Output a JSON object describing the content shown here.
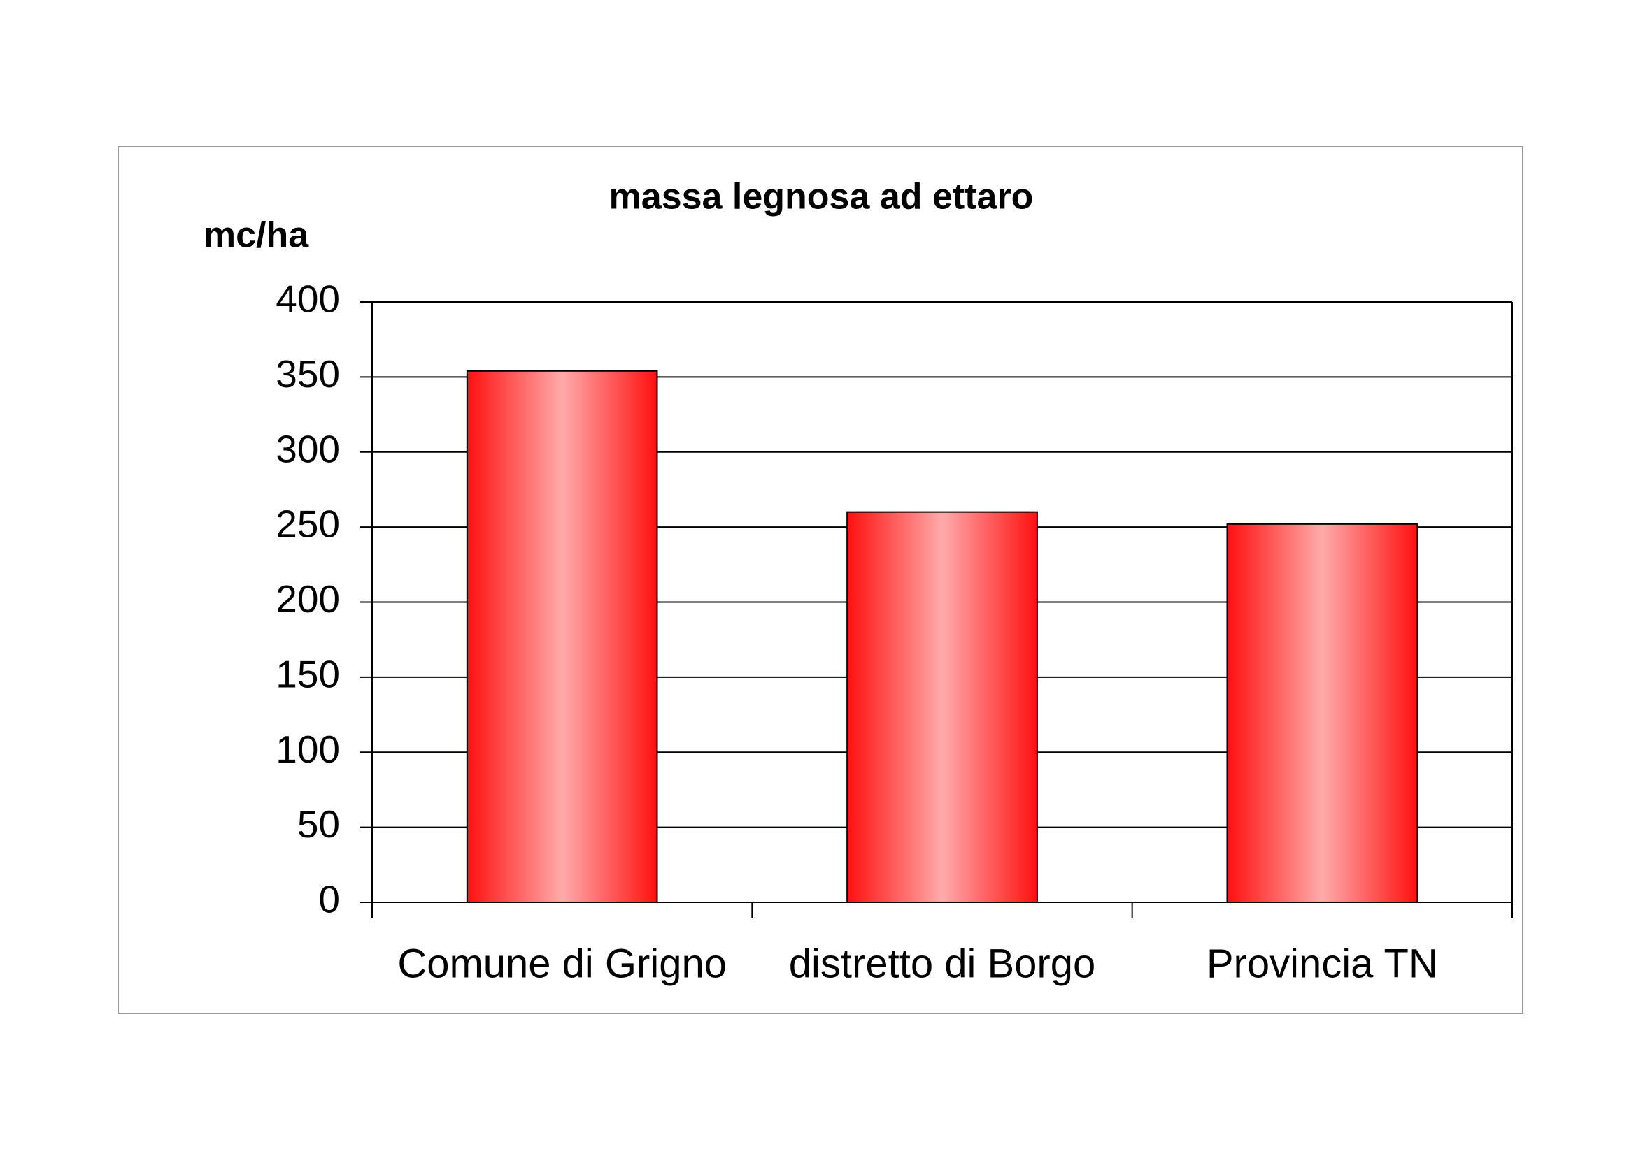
{
  "chart_data": {
    "type": "bar",
    "title": "massa legnosa ad ettaro",
    "y_label": "mc/ha",
    "categories": [
      "Comune di Grigno",
      "distretto di Borgo",
      "Provincia TN"
    ],
    "values": [
      354,
      260,
      252
    ],
    "color": "#ff0000",
    "ylim": [
      0,
      400
    ],
    "yticks": [
      0,
      50,
      100,
      150,
      200,
      250,
      300,
      350,
      400
    ],
    "grid": true
  }
}
